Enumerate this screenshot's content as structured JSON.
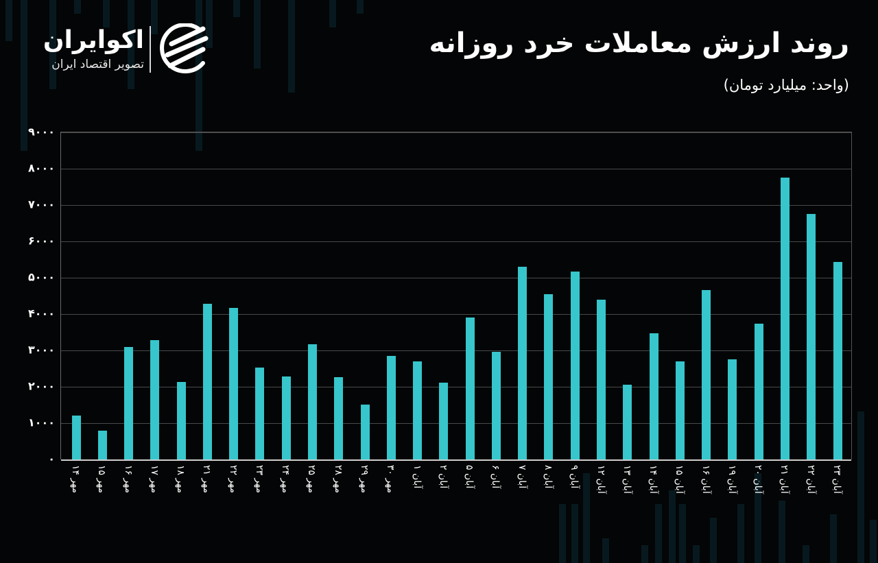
{
  "brand": {
    "name": "اکوایران",
    "tagline": "تصویر اقتصاد ایران",
    "logo_icon": "ecoiran-swoosh-logo"
  },
  "header": {
    "title": "روند ارزش معاملات خرد روزانه",
    "subtitle": "(واحد: میلیارد تومان)"
  },
  "colors": {
    "background": "#040506",
    "bar": "#36c6cc",
    "grid": "#4a4a4a",
    "text": "#ffffff"
  },
  "y_ticks": [
    "۰",
    "۱۰۰۰",
    "۲۰۰۰",
    "۳۰۰۰",
    "۴۰۰۰",
    "۵۰۰۰",
    "۶۰۰۰",
    "۷۰۰۰",
    "۸۰۰۰",
    "۹۰۰۰"
  ],
  "chart_data": {
    "type": "bar",
    "title": "روند ارزش معاملات خرد روزانه",
    "subtitle": "(واحد: میلیارد تومان)",
    "xlabel": "",
    "ylabel": "میلیارد تومان",
    "ylim": [
      0,
      9000
    ],
    "yticks": [
      0,
      1000,
      2000,
      3000,
      4000,
      5000,
      6000,
      7000,
      8000,
      9000
    ],
    "grid": true,
    "legend": null,
    "categories": [
      "مهر ۱۴",
      "مهر ۱۵",
      "مهر ۱۶",
      "مهر ۱۷",
      "مهر ۱۸",
      "مهر ۲۱",
      "مهر ۲۲",
      "مهر ۲۳",
      "مهر ۲۴",
      "مهر ۲۵",
      "مهر ۲۸",
      "مهر ۲۹",
      "مهر ۳۰",
      "آبان ۱",
      "آبان ۲",
      "آبان ۵",
      "آبان ۶",
      "آبان ۷",
      "آبان ۸",
      "آبان ۹",
      "آبان ۱۲",
      "آبان ۱۳",
      "آبان ۱۴",
      "آبان ۱۵",
      "آبان ۱۶",
      "آبان ۱۹",
      "آبان ۲۰",
      "آبان ۲۱",
      "آبان ۲۲",
      "آبان ۲۳"
    ],
    "values": [
      1200,
      790,
      3100,
      3290,
      2130,
      4280,
      4170,
      2530,
      2280,
      3170,
      2260,
      1510,
      2850,
      2700,
      2110,
      3900,
      2960,
      5300,
      4550,
      5170,
      4400,
      2060,
      3470,
      2700,
      4660,
      2750,
      3740,
      7750,
      6750,
      5430
    ]
  }
}
